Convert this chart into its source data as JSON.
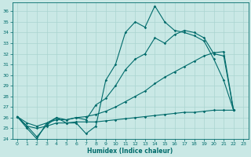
{
  "xlabel": "Humidex (Indice chaleur)",
  "xlim": [
    -0.5,
    23.5
  ],
  "ylim": [
    24,
    36.8
  ],
  "yticks": [
    24,
    25,
    26,
    27,
    28,
    29,
    30,
    31,
    32,
    33,
    34,
    35,
    36
  ],
  "xticks": [
    0,
    1,
    2,
    3,
    4,
    5,
    6,
    7,
    8,
    9,
    10,
    11,
    12,
    13,
    14,
    15,
    16,
    17,
    18,
    19,
    20,
    21,
    22,
    23
  ],
  "bg_color": "#c9e8e5",
  "line_color": "#006b6b",
  "grid_color": "#aad4d0",
  "line1_x": [
    0,
    1,
    2,
    3,
    4,
    5,
    6,
    7,
    8,
    9,
    10,
    11,
    12,
    13,
    14,
    15,
    16,
    17,
    18,
    19,
    20,
    21,
    22
  ],
  "line1_y": [
    26.1,
    25.0,
    24.0,
    25.5,
    26.0,
    25.5,
    25.5,
    24.5,
    25.2,
    29.5,
    31.0,
    34.0,
    35.0,
    34.5,
    36.5,
    35.0,
    34.2,
    34.0,
    33.7,
    33.2,
    31.5,
    29.5,
    26.7
  ],
  "line2_x": [
    0,
    1,
    2,
    3,
    4,
    5,
    6,
    7,
    8,
    9,
    10,
    11,
    12,
    13,
    14,
    15,
    16,
    17,
    18,
    19,
    20,
    21,
    22
  ],
  "line2_y": [
    26.1,
    25.2,
    24.2,
    25.3,
    26.0,
    25.8,
    26.0,
    25.8,
    27.2,
    27.8,
    29.0,
    30.5,
    31.5,
    32.0,
    33.5,
    33.0,
    33.8,
    34.2,
    34.0,
    33.5,
    32.0,
    31.8,
    26.7
  ],
  "line3_x": [
    0,
    1,
    2,
    3,
    4,
    5,
    6,
    7,
    8,
    9,
    10,
    11,
    12,
    13,
    14,
    15,
    16,
    17,
    18,
    19,
    20,
    21,
    22
  ],
  "line3_y": [
    26.1,
    25.5,
    25.2,
    25.5,
    25.8,
    25.8,
    26.0,
    26.1,
    26.3,
    26.6,
    27.0,
    27.5,
    28.0,
    28.5,
    29.2,
    29.8,
    30.3,
    30.8,
    31.3,
    31.8,
    32.1,
    32.2,
    26.7
  ],
  "line4_x": [
    0,
    1,
    2,
    3,
    4,
    5,
    6,
    7,
    8,
    9,
    10,
    11,
    12,
    13,
    14,
    15,
    16,
    17,
    18,
    19,
    20,
    21,
    22
  ],
  "line4_y": [
    26.1,
    25.2,
    25.0,
    25.2,
    25.5,
    25.5,
    25.6,
    25.6,
    25.6,
    25.7,
    25.8,
    25.9,
    26.0,
    26.1,
    26.2,
    26.3,
    26.4,
    26.5,
    26.5,
    26.6,
    26.7,
    26.7,
    26.7
  ]
}
